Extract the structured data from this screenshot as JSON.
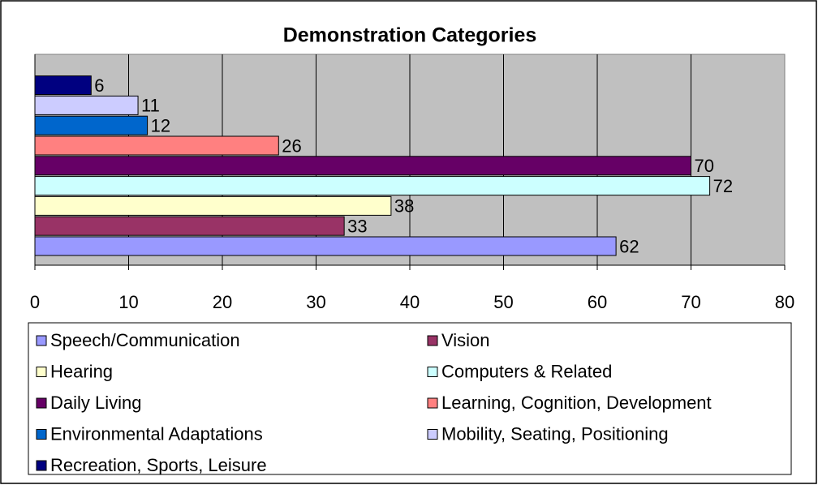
{
  "chart_data": {
    "type": "bar",
    "orientation": "horizontal",
    "title": "Demonstration Categories",
    "categories": [
      null
    ],
    "series": [
      {
        "name": "Speech/Communication",
        "color": "#9999ff",
        "values": [
          62
        ]
      },
      {
        "name": "Vision",
        "color": "#993366",
        "values": [
          33
        ]
      },
      {
        "name": "Hearing",
        "color": "#ffffcc",
        "values": [
          38
        ]
      },
      {
        "name": "Computers & Related",
        "color": "#ccffff",
        "values": [
          72
        ]
      },
      {
        "name": "Daily Living",
        "color": "#660066",
        "values": [
          70
        ]
      },
      {
        "name": "Learning, Cognition, Development",
        "color": "#ff8080",
        "values": [
          26
        ]
      },
      {
        "name": "Environmental Adaptations",
        "color": "#0066cc",
        "values": [
          12
        ]
      },
      {
        "name": "Mobility, Seating, Positioning",
        "color": "#ccccff",
        "values": [
          11
        ]
      },
      {
        "name": "Recreation, Sports, Leisure",
        "color": "#000080",
        "values": [
          6
        ]
      }
    ],
    "xlim": [
      0,
      80
    ],
    "xticks": [
      0,
      10,
      20,
      30,
      40,
      50,
      60,
      70,
      80
    ],
    "grid": true,
    "legend": "bottom"
  }
}
